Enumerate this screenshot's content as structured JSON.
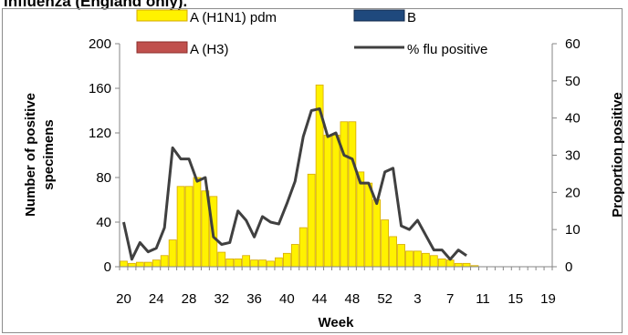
{
  "page": {
    "title": "influenza (England only)."
  },
  "chart_data": {
    "type": "bar",
    "x_tick_labels": [
      "20",
      "24",
      "28",
      "32",
      "36",
      "40",
      "44",
      "48",
      "52",
      "3",
      "7",
      "11",
      "15",
      "19"
    ],
    "weeks": [
      20,
      21,
      22,
      23,
      24,
      25,
      26,
      27,
      28,
      29,
      30,
      31,
      32,
      33,
      34,
      35,
      36,
      37,
      38,
      39,
      40,
      41,
      42,
      43,
      44,
      45,
      46,
      47,
      48,
      49,
      50,
      51,
      52,
      53,
      1,
      2,
      3,
      4,
      5,
      6,
      7,
      8,
      9,
      10,
      11,
      12,
      13,
      14,
      15,
      16,
      17,
      18,
      19
    ],
    "xlabel": "Week",
    "ylabel_left": [
      "Number of positive",
      "specimens"
    ],
    "ylabel_right": "Proportion positive",
    "ylim_left": [
      0,
      200
    ],
    "ylim_right": [
      0,
      60
    ],
    "yticks_left": [
      "0",
      "40",
      "80",
      "120",
      "160",
      "200"
    ],
    "yticks_right": [
      "0",
      "10",
      "20",
      "30",
      "40",
      "50",
      "60"
    ],
    "series": [
      {
        "name": "A (H1N1) pdm",
        "type": "bar",
        "color": "#FFF200",
        "edge": "#D6A800",
        "values": [
          5,
          3,
          4,
          4,
          6,
          10,
          24,
          72,
          72,
          80,
          68,
          63,
          13,
          7,
          7,
          10,
          6,
          6,
          5,
          8,
          12,
          20,
          35,
          83,
          163,
          118,
          118,
          130,
          130,
          85,
          75,
          60,
          42,
          27,
          20,
          14,
          14,
          12,
          10,
          7,
          6,
          3,
          3,
          1,
          0,
          0,
          0,
          0,
          0,
          0,
          0,
          0,
          0
        ]
      },
      {
        "name": "A (H3)",
        "type": "bar",
        "color": "#C0504D",
        "edge": "#8B2E2B",
        "values": [
          0,
          0,
          0,
          0,
          0,
          0,
          0,
          0,
          0,
          0,
          0,
          0,
          0,
          0,
          0,
          0,
          0,
          0,
          0,
          0,
          0,
          0,
          0,
          0,
          0,
          0,
          0,
          0,
          0,
          0,
          0,
          0,
          0,
          0,
          0,
          0,
          0,
          0,
          0,
          0,
          0,
          0,
          0,
          0,
          0,
          0,
          0,
          0,
          0,
          0,
          0,
          0,
          0
        ]
      },
      {
        "name": "B",
        "type": "bar",
        "color": "#1F497D",
        "edge": "#10294A",
        "values": [
          0,
          0,
          0,
          0,
          0,
          0,
          0,
          0,
          0,
          0,
          0,
          0,
          0,
          0,
          0,
          0,
          0,
          0,
          0,
          0,
          0,
          0,
          0,
          0,
          0,
          0,
          0,
          0,
          0,
          0,
          0,
          0,
          0,
          0,
          0,
          0,
          0,
          0,
          0,
          0,
          0,
          0,
          0,
          0,
          0,
          0,
          0,
          0,
          0,
          0,
          0,
          0,
          0
        ]
      },
      {
        "name": "% flu positive",
        "type": "line",
        "color": "#404040",
        "axis": "right",
        "values": [
          12,
          2,
          6.5,
          4,
          5,
          10.5,
          32,
          29,
          29,
          23,
          24,
          8,
          6,
          6.5,
          15,
          12.5,
          8,
          13.5,
          12,
          11.5,
          17,
          23,
          35,
          42,
          42.5,
          35,
          36,
          30,
          29,
          22.5,
          22.5,
          17,
          25.5,
          26.5,
          11,
          10,
          12.5,
          8.5,
          4.5,
          4.5,
          2,
          4.5,
          3
        ]
      }
    ],
    "legend": [
      {
        "name": "A (H1N1) pdm",
        "kind": "bar",
        "color": "#FFF200",
        "edge": "#D6A800"
      },
      {
        "name": "B",
        "kind": "bar",
        "color": "#1F497D",
        "edge": "#10294A"
      },
      {
        "name": "A (H3)",
        "kind": "bar",
        "color": "#C0504D",
        "edge": "#8B2E2B"
      },
      {
        "name": "% flu positive",
        "kind": "line",
        "color": "#404040"
      }
    ],
    "legend_placement": "top",
    "grid": false
  }
}
